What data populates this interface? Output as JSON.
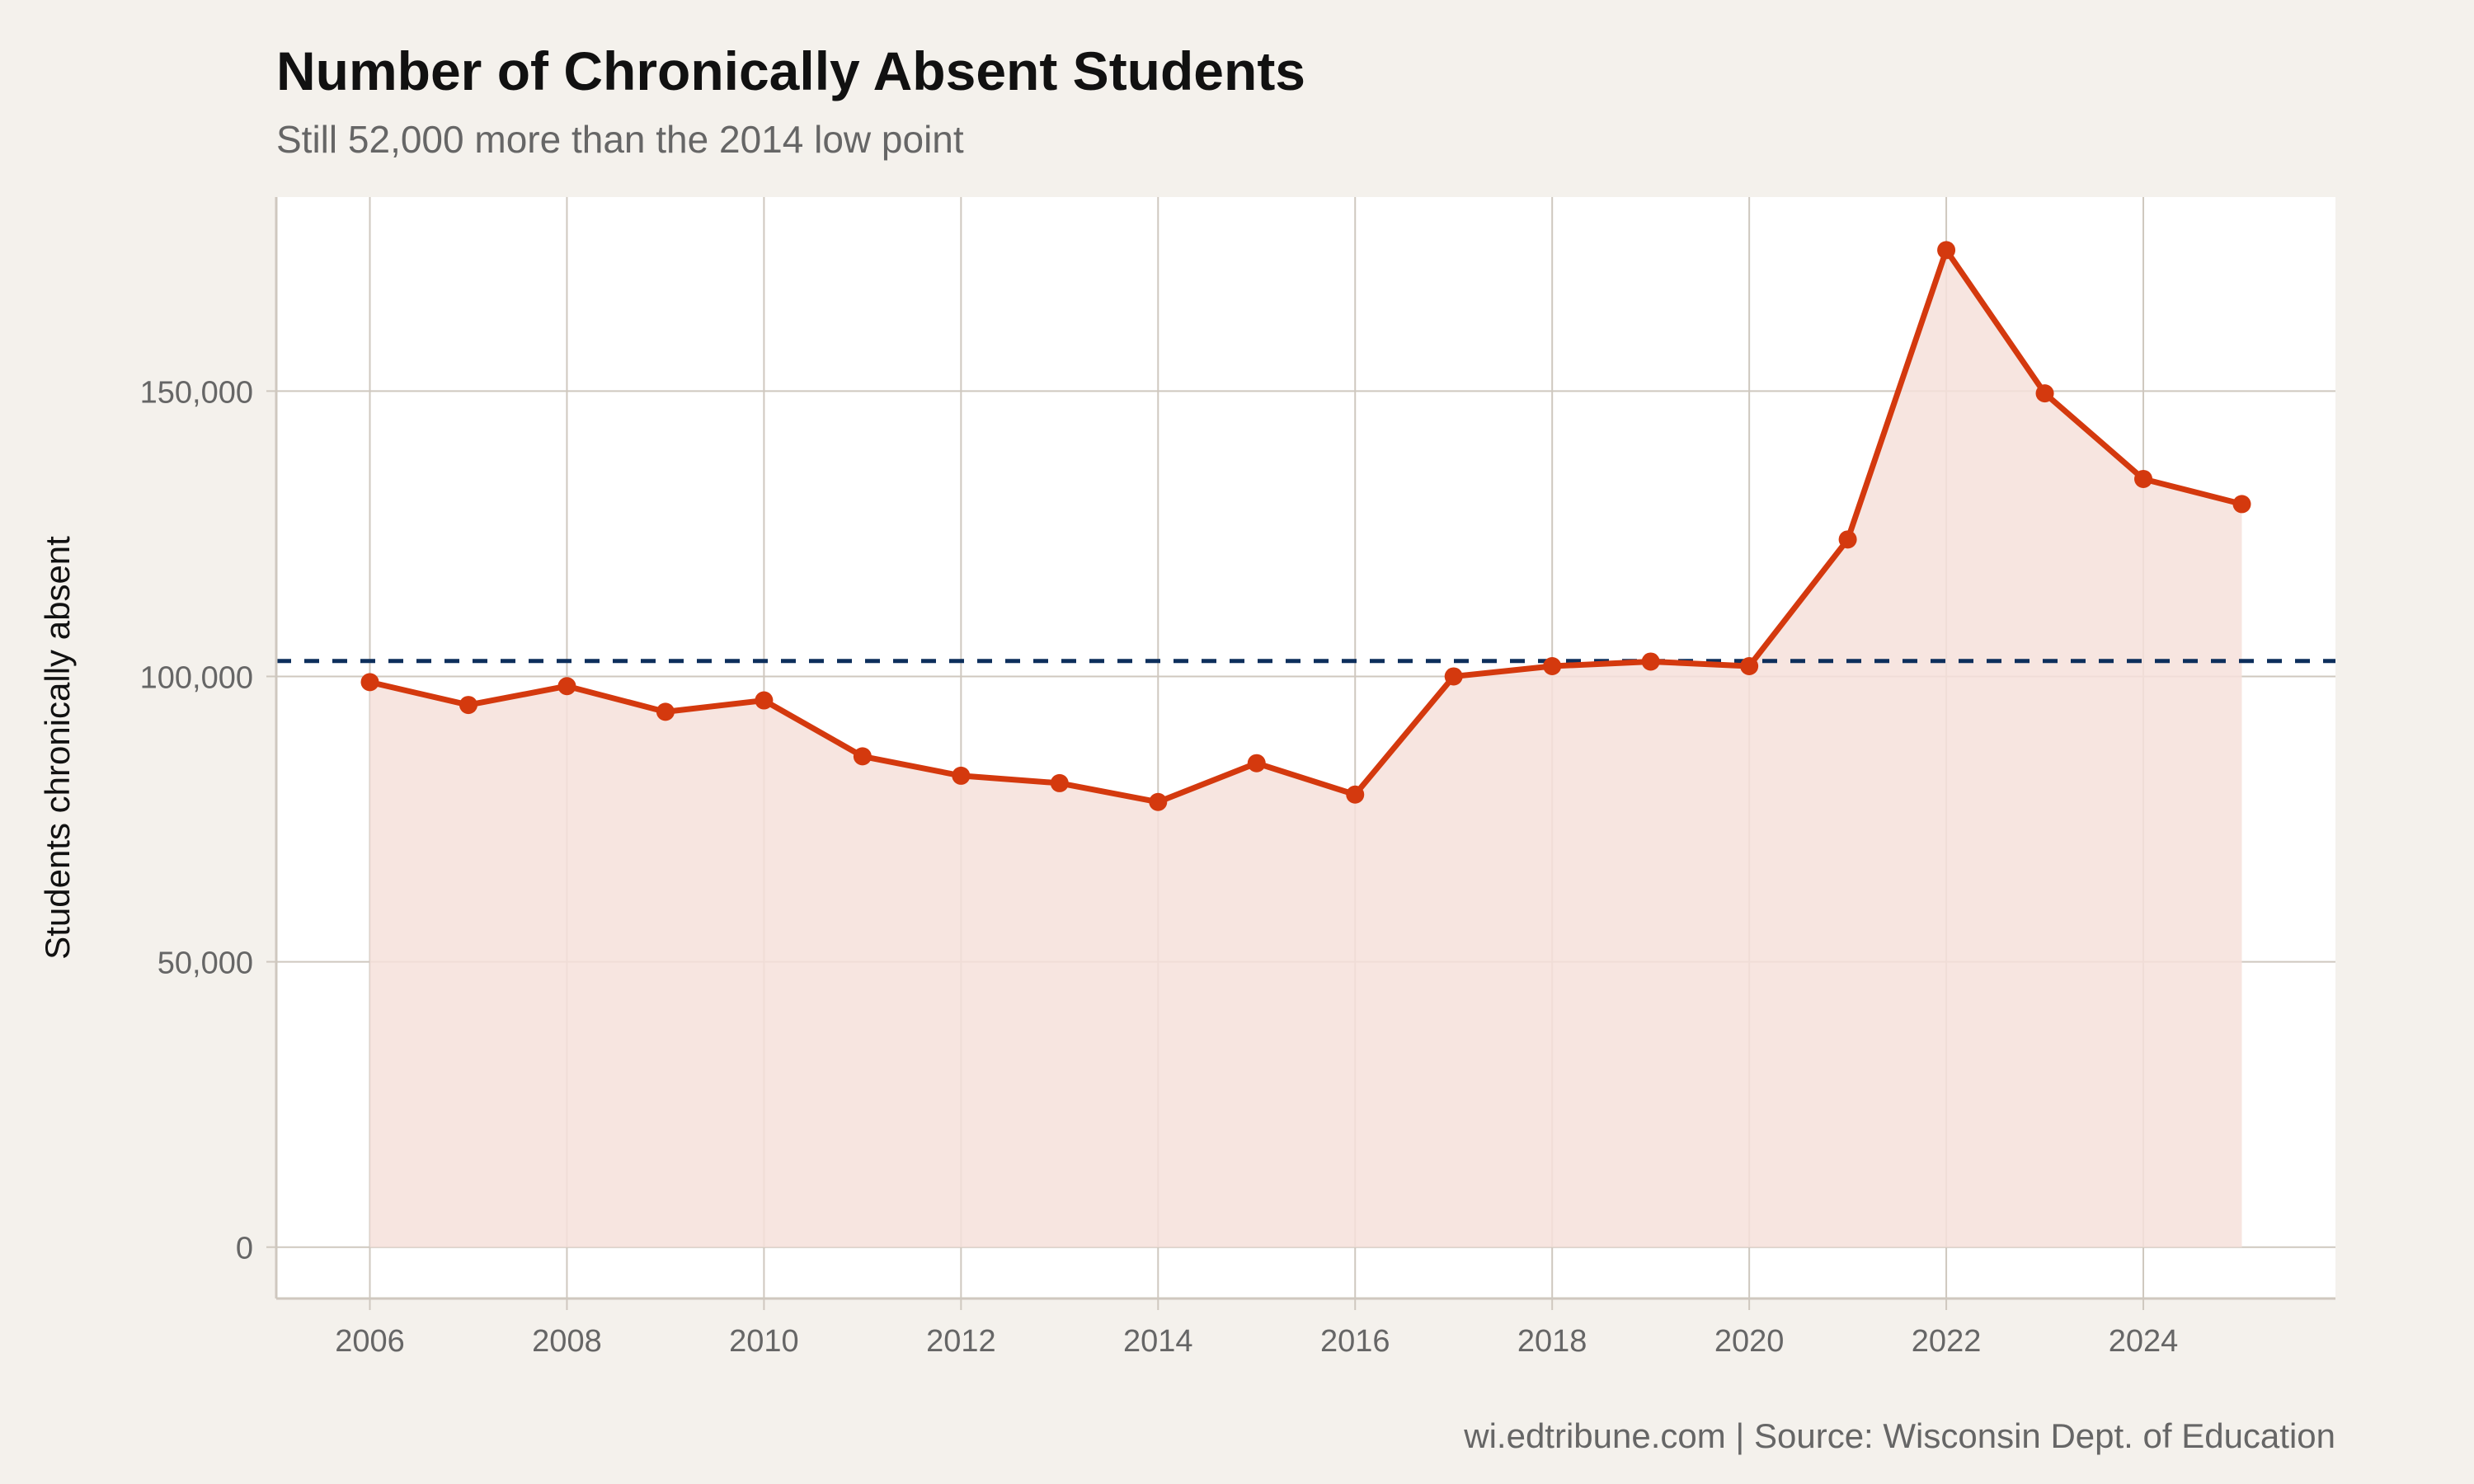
{
  "chart_data": {
    "type": "area",
    "title": "Number of Chronically Absent Students",
    "subtitle": "Still 52,000 more than the 2014 low point",
    "caption": "wi.edtribune.com | Source: Wisconsin Dept. of Education",
    "xlabel": "",
    "ylabel": "Students chronically absent",
    "x": [
      2006,
      2007,
      2008,
      2009,
      2010,
      2011,
      2012,
      2013,
      2014,
      2015,
      2016,
      2017,
      2018,
      2019,
      2020,
      2021,
      2022,
      2023,
      2024,
      2025
    ],
    "series": [
      {
        "values": [
          99000,
          95000,
          98300,
          93800,
          95800,
          86000,
          82600,
          81300,
          78000,
          84800,
          79300,
          100000,
          101800,
          102600,
          101800,
          124000,
          174700,
          149600,
          134600,
          130200
        ]
      }
    ],
    "reference_line": {
      "value": 102700,
      "style": "dashed",
      "color": "#0d2f5c"
    },
    "xticks": [
      "2006",
      "2008",
      "2010",
      "2012",
      "2014",
      "2016",
      "2018",
      "2020",
      "2022",
      "2024"
    ],
    "yticks": [
      "0",
      "50,000",
      "100,000",
      "150,000"
    ],
    "ytick_values": [
      0,
      50000,
      100000,
      150000
    ],
    "xlim": [
      2005.05,
      2025.95
    ],
    "ylim": [
      -9000,
      184000
    ],
    "grid": true,
    "colors": {
      "line": "#d4390e",
      "fill": "#f6e0da",
      "panel": "#ffffff",
      "background": "#f4f1ec",
      "grid": "#cfc8bf"
    }
  }
}
